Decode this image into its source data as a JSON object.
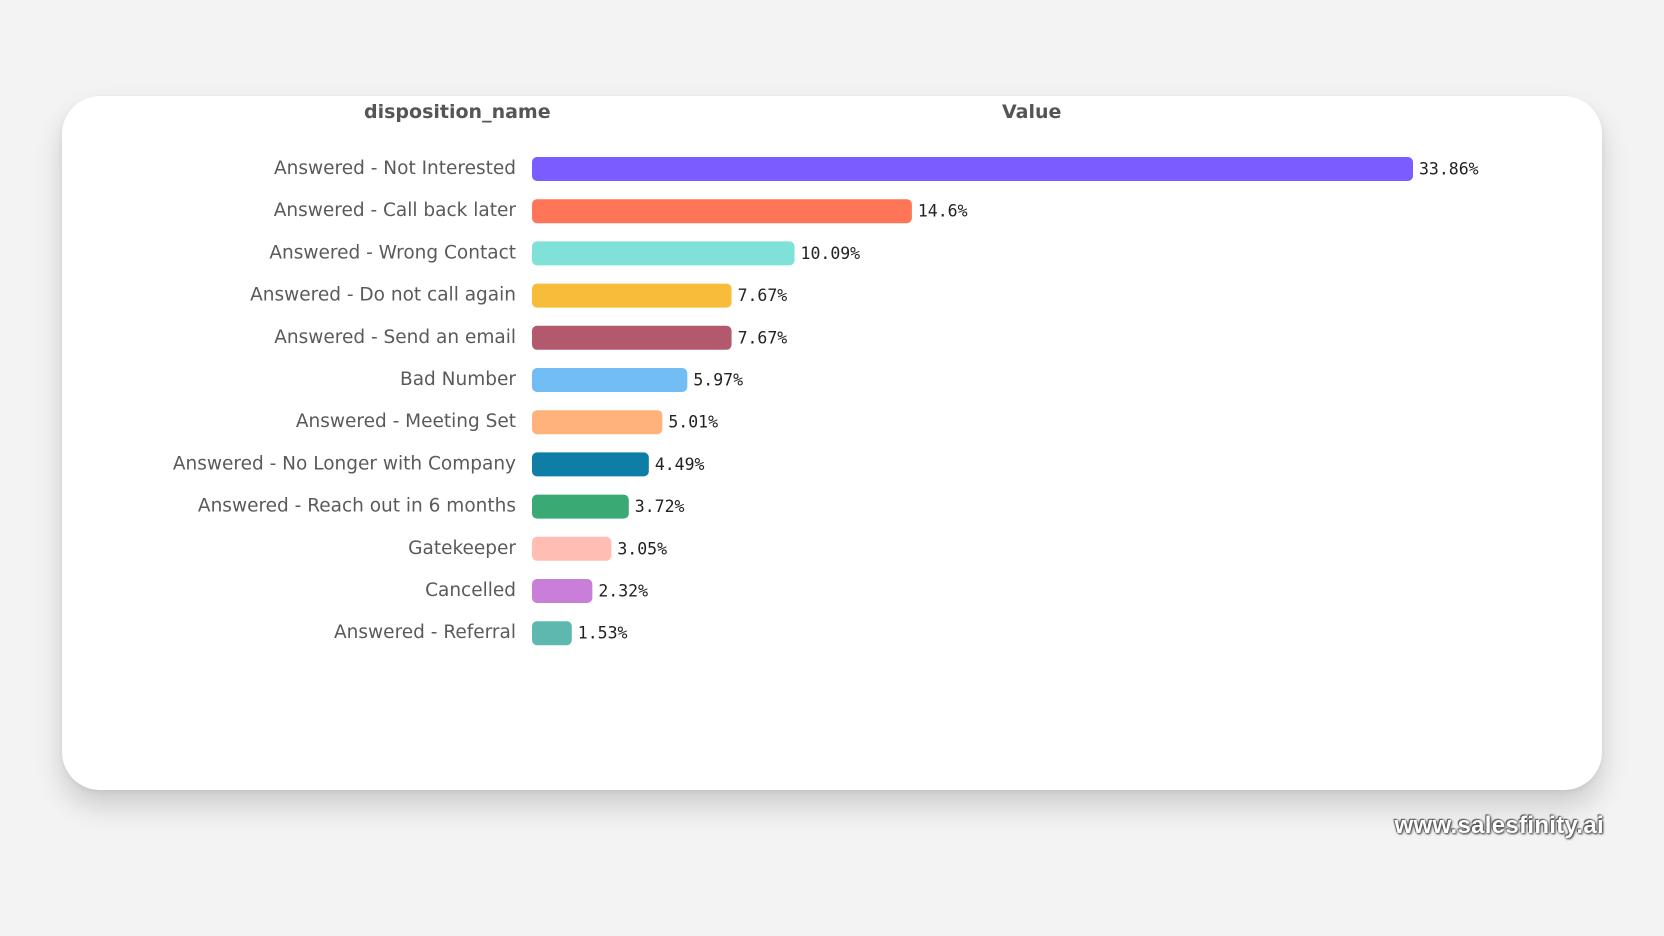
{
  "chart_data": {
    "type": "bar",
    "orientation": "horizontal",
    "columns": {
      "category_header": "disposition_name",
      "value_header": "Value"
    },
    "categories": [
      "Answered - Not Interested",
      "Answered - Call back later",
      "Answered - Wrong Contact",
      "Answered - Do not call again",
      "Answered - Send an email",
      "Bad Number",
      "Answered - Meeting Set",
      "Answered - No Longer with Company",
      "Answered - Reach out in 6 months",
      "Gatekeeper",
      "Cancelled",
      "Answered - Referral"
    ],
    "values": [
      33.86,
      14.6,
      10.09,
      7.67,
      7.67,
      5.97,
      5.01,
      4.49,
      3.72,
      3.05,
      2.32,
      1.53
    ],
    "data_labels": [
      "33.86%",
      "14.6%",
      "10.09%",
      "7.67%",
      "7.67%",
      "5.97%",
      "5.01%",
      "4.49%",
      "3.72%",
      "3.05%",
      "2.32%",
      "1.53%"
    ],
    "colors": [
      "#7b5cff",
      "#ff7557",
      "#80e1d9",
      "#f8bc3b",
      "#b2596e",
      "#72bef4",
      "#ffb27a",
      "#0e7ea6",
      "#3ba974",
      "#ffbdb4",
      "#c97ed9",
      "#5fb8b0"
    ],
    "title": "",
    "xlabel": "",
    "ylabel": "",
    "xlim": [
      0,
      33.86
    ],
    "grid": false,
    "legend": "none"
  },
  "footer": {
    "watermark": "www.salesfinity.ai"
  }
}
